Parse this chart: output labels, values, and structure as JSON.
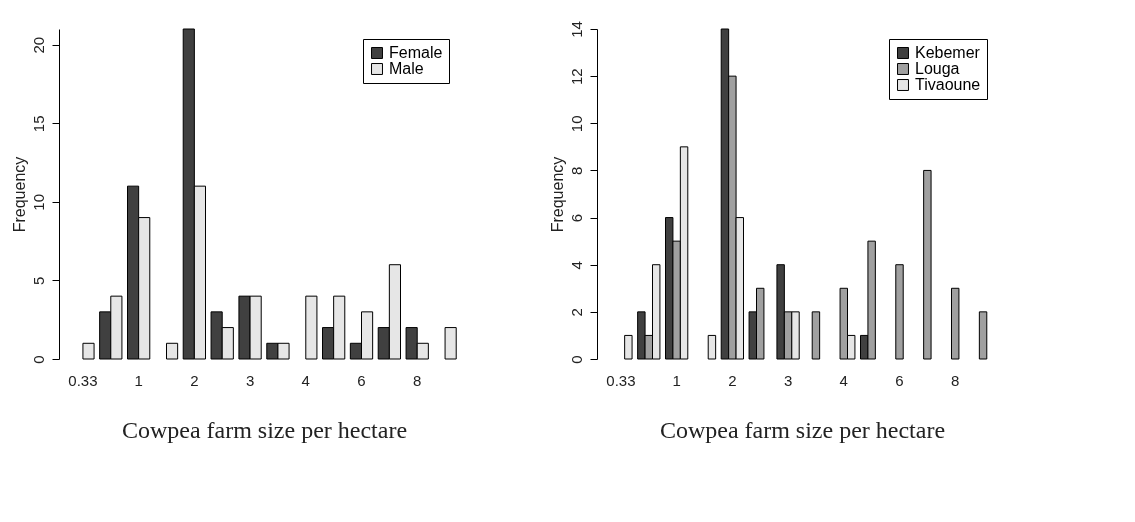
{
  "chart_data": [
    {
      "type": "bar",
      "xlabel": "Cowpea farm size per hectare",
      "ylabel": "Frequency",
      "categories": [
        "0.33",
        null,
        "1",
        null,
        "2",
        null,
        "3",
        null,
        "4",
        null,
        "6",
        null,
        "8",
        null
      ],
      "ylim": [
        0,
        21
      ],
      "yticks": [
        0,
        5,
        10,
        15,
        20
      ],
      "legend": "top right",
      "series": [
        {
          "name": "Female",
          "color": "#404040",
          "values": [
            0,
            3,
            11,
            0,
            21,
            3,
            4,
            1,
            0,
            2,
            1,
            2,
            2,
            0
          ]
        },
        {
          "name": "Male",
          "color": "#e6e6e6",
          "values": [
            1,
            4,
            9,
            1,
            11,
            2,
            4,
            1,
            4,
            4,
            3,
            6,
            1,
            2
          ]
        }
      ]
    },
    {
      "type": "bar",
      "xlabel": "Cowpea farm size per hectare",
      "ylabel": "Frequency",
      "categories": [
        "0.33",
        null,
        "1",
        null,
        "2",
        null,
        "3",
        null,
        "4",
        null,
        "6",
        null,
        "8",
        null
      ],
      "ylim": [
        0,
        14
      ],
      "yticks": [
        0,
        2,
        4,
        6,
        8,
        10,
        12,
        14
      ],
      "legend": "top right",
      "series": [
        {
          "name": "Kebemer",
          "color": "#404040",
          "values": [
            0,
            2,
            6,
            0,
            14,
            2,
            4,
            0,
            0,
            1,
            0,
            0,
            0,
            0
          ]
        },
        {
          "name": "Louga",
          "color": "#a0a0a0",
          "values": [
            0,
            1,
            5,
            0,
            12,
            3,
            2,
            2,
            3,
            5,
            4,
            8,
            3,
            2
          ]
        },
        {
          "name": "Tivaoune",
          "color": "#e6e6e6",
          "values": [
            1,
            4,
            9,
            1,
            6,
            0,
            2,
            0,
            1,
            0,
            0,
            0,
            0,
            0
          ]
        }
      ]
    }
  ]
}
